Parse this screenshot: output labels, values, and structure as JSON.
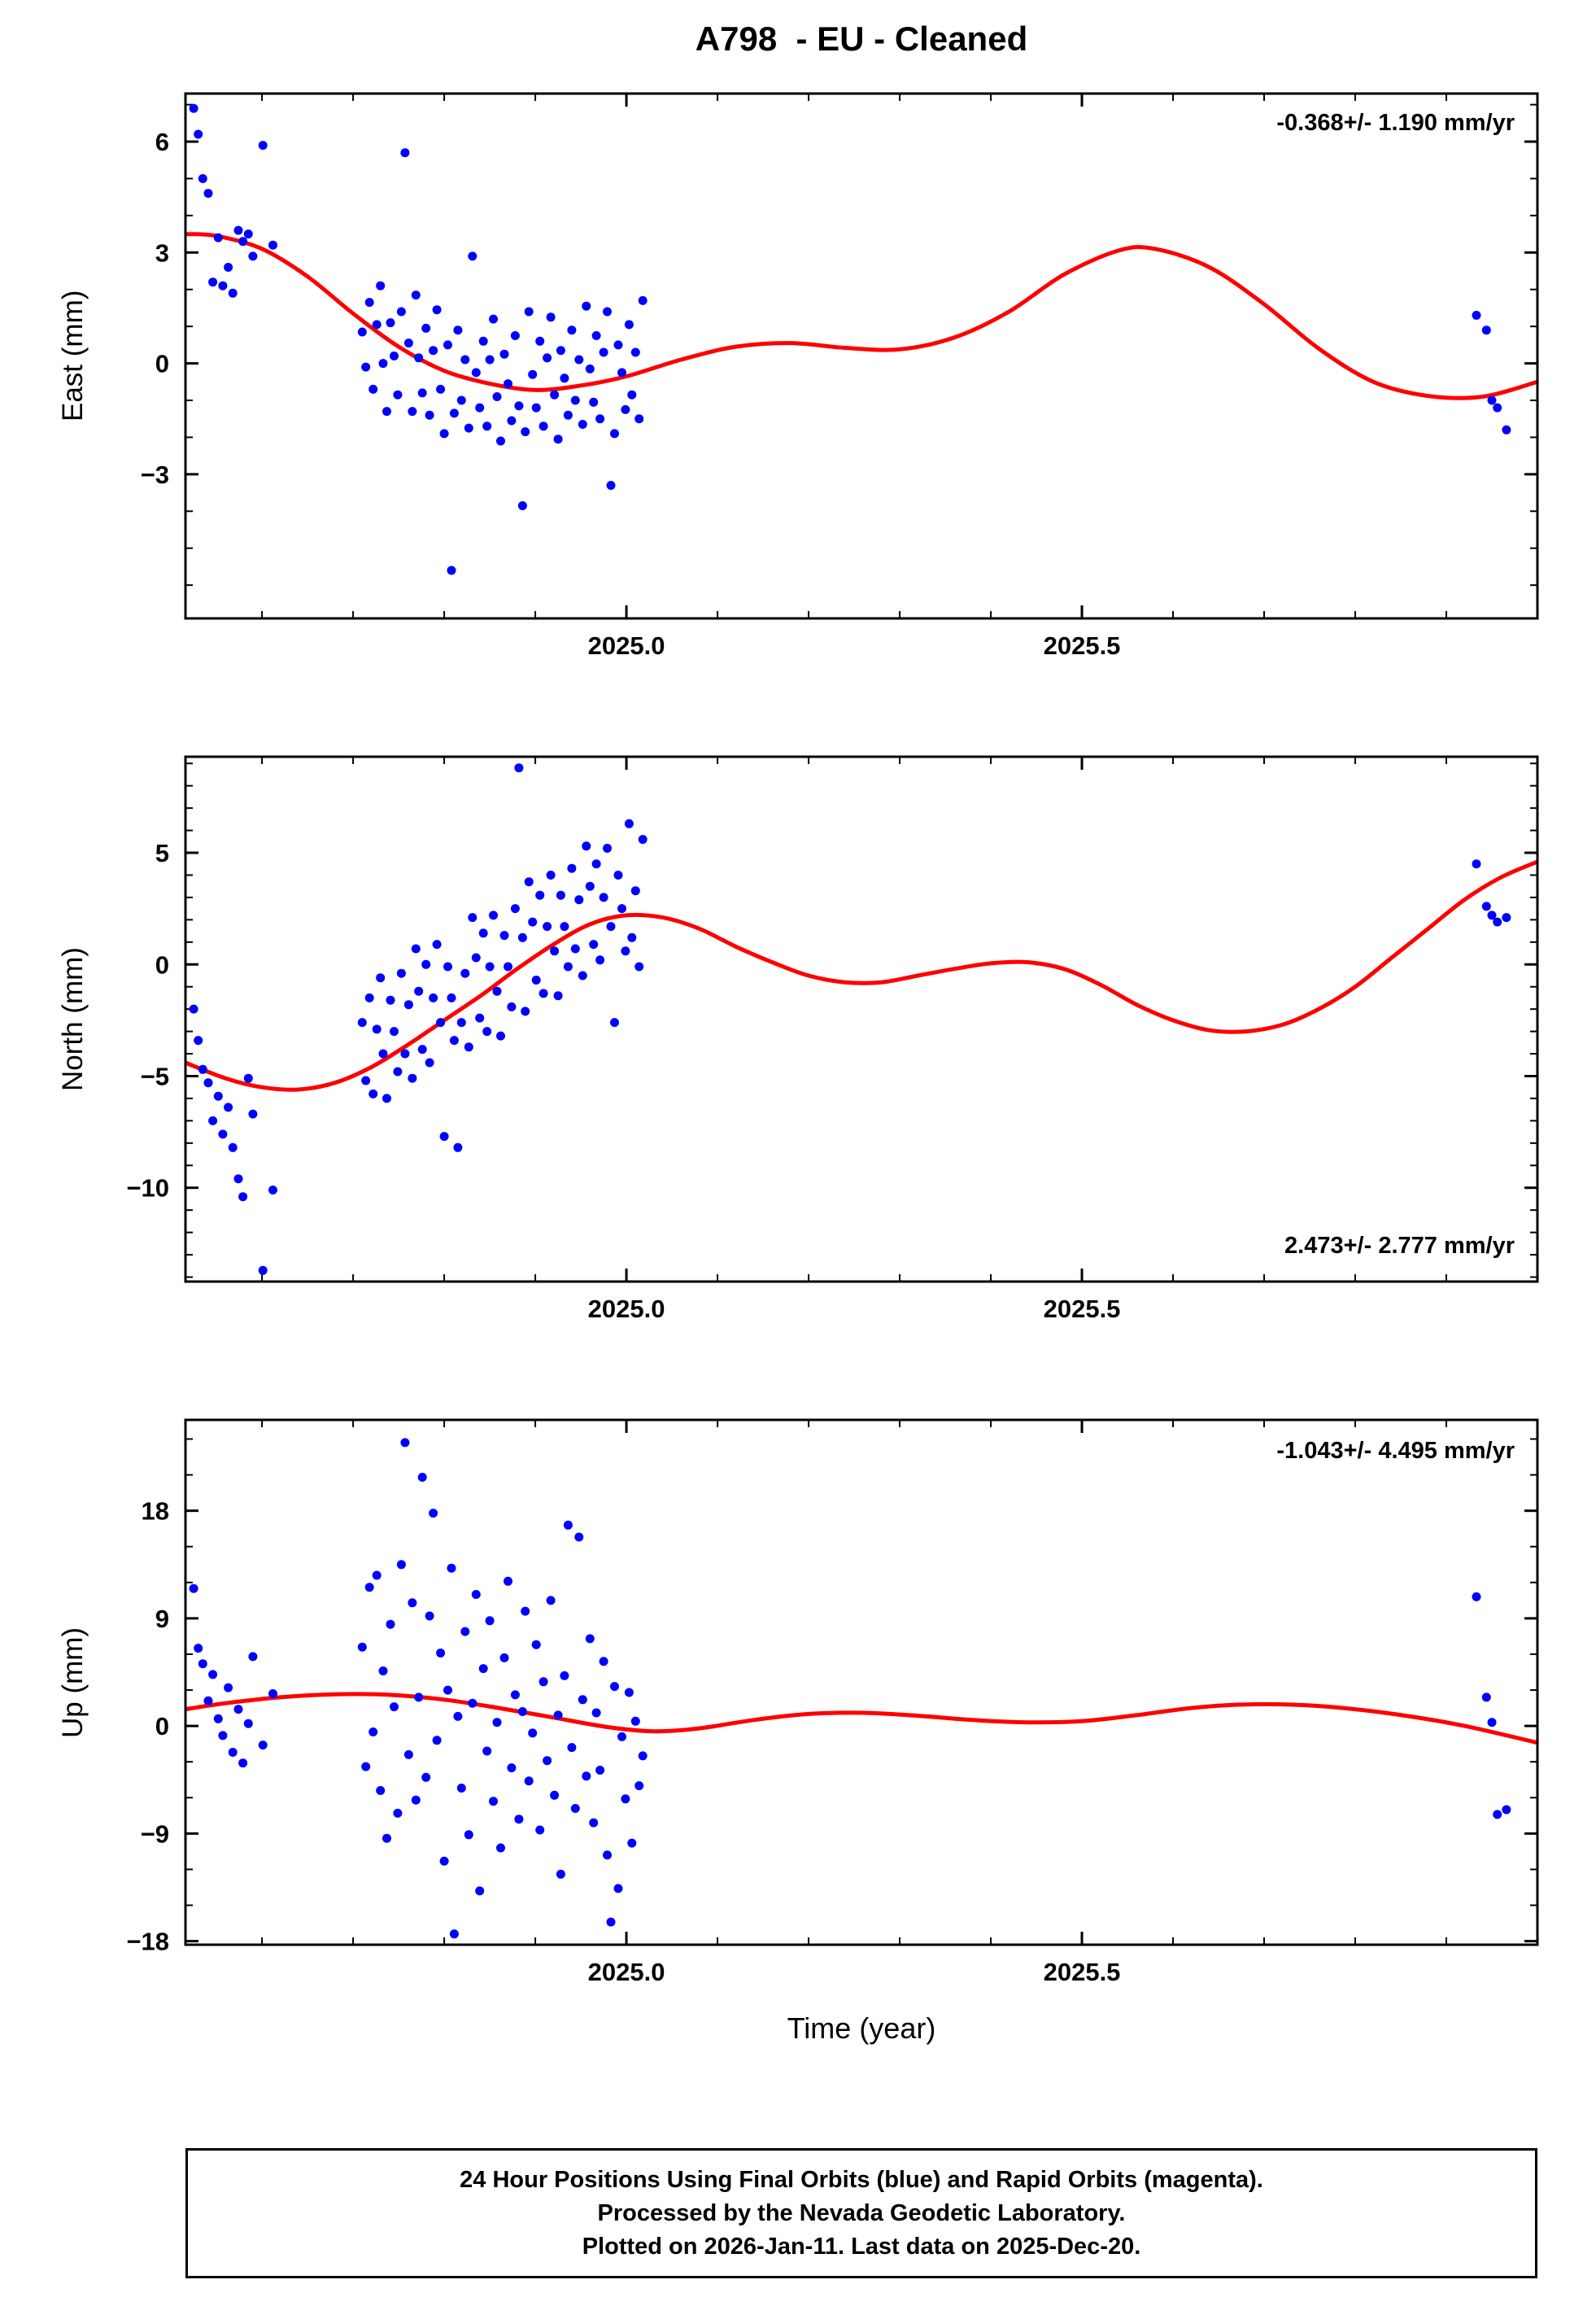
{
  "title": "A798  - EU - Cleaned",
  "xlabel": "Time (year)",
  "caption": {
    "line1": "24 Hour Positions Using Final Orbits (blue) and Rapid Orbits (magenta).",
    "line2": "Processed by the Nevada Geodetic Laboratory.",
    "line3": "Plotted on 2026-Jan-11. Last data on 2025-Dec-20."
  },
  "colors": {
    "points": "#0000ff",
    "fit": "#ff0000",
    "frame": "#000000",
    "background": "#ffffff"
  },
  "chart_data": {
    "type": "scatter",
    "xlim": [
      2024.516,
      2026.0
    ],
    "x_ticks_labeled": [
      2025.0,
      2025.5
    ],
    "x_minor_step": 0.1,
    "grid": false,
    "x": [
      2024.525,
      2024.53,
      2024.535,
      2024.541,
      2024.546,
      2024.552,
      2024.557,
      2024.563,
      2024.568,
      2024.574,
      2024.579,
      2024.585,
      2024.59,
      2024.601,
      2024.612,
      2024.71,
      2024.714,
      2024.718,
      2024.722,
      2024.726,
      2024.73,
      2024.733,
      2024.737,
      2024.741,
      2024.745,
      2024.749,
      2024.753,
      2024.757,
      2024.761,
      2024.765,
      2024.769,
      2024.772,
      2024.776,
      2024.78,
      2024.784,
      2024.788,
      2024.792,
      2024.796,
      2024.8,
      2024.804,
      2024.808,
      2024.811,
      2024.815,
      2024.819,
      2024.823,
      2024.827,
      2024.831,
      2024.835,
      2024.839,
      2024.843,
      2024.847,
      2024.85,
      2024.854,
      2024.858,
      2024.862,
      2024.866,
      2024.87,
      2024.874,
      2024.878,
      2024.882,
      2024.886,
      2024.889,
      2024.893,
      2024.897,
      2024.901,
      2024.905,
      2024.909,
      2024.913,
      2024.917,
      2024.921,
      2024.925,
      2024.928,
      2024.932,
      2024.936,
      2024.94,
      2024.944,
      2024.948,
      2024.952,
      2024.956,
      2024.96,
      2024.964,
      2024.967,
      2024.971,
      2024.975,
      2024.979,
      2024.983,
      2024.987,
      2024.991,
      2024.995,
      2024.999,
      2025.003,
      2025.006,
      2025.01,
      2025.014,
      2025.018,
      2025.933,
      2025.944,
      2025.95,
      2025.956,
      2025.966
    ],
    "panels": [
      {
        "id": "east",
        "ylabel": "East (mm)",
        "annotation": "-0.368+/- 1.190 mm/yr",
        "annotation_pos": "top-right",
        "ylim": [
          -6.9,
          7.3
        ],
        "yticks": [
          6,
          3,
          0,
          -3
        ],
        "y_minor_step": 1,
        "values": [
          6.9,
          6.2,
          5.0,
          4.6,
          2.2,
          3.4,
          2.1,
          2.6,
          1.9,
          3.6,
          3.3,
          3.5,
          2.9,
          5.9,
          3.2,
          0.85,
          -0.1,
          1.65,
          -0.7,
          1.05,
          2.1,
          0.0,
          -1.3,
          1.1,
          0.2,
          -0.85,
          1.4,
          5.7,
          0.55,
          -1.3,
          1.85,
          0.15,
          -0.8,
          0.95,
          -1.4,
          0.35,
          1.45,
          -0.7,
          -1.9,
          0.5,
          -5.6,
          -1.35,
          0.9,
          -1.0,
          0.1,
          -1.75,
          2.9,
          -0.25,
          -1.2,
          0.6,
          -1.7,
          0.1,
          1.2,
          -0.9,
          -2.1,
          0.25,
          -0.55,
          -1.55,
          0.75,
          -1.15,
          -3.85,
          -1.85,
          1.4,
          -0.3,
          -1.2,
          0.6,
          -1.7,
          0.15,
          1.25,
          -0.85,
          -2.05,
          0.35,
          -0.4,
          -1.4,
          0.9,
          -1.0,
          0.1,
          -1.65,
          1.55,
          -0.15,
          -1.05,
          0.75,
          -1.5,
          0.3,
          1.4,
          -3.3,
          -1.9,
          0.5,
          -0.25,
          -1.25,
          1.05,
          -0.85,
          0.3,
          -1.5,
          1.7,
          1.3,
          0.9,
          -1.0,
          -1.2,
          -1.8
        ],
        "fit": [
          [
            2024.516,
            3.5
          ],
          [
            2024.55,
            3.45
          ],
          [
            2024.6,
            3.1
          ],
          [
            2024.65,
            2.35
          ],
          [
            2024.7,
            1.35
          ],
          [
            2024.75,
            0.45
          ],
          [
            2024.8,
            -0.2
          ],
          [
            2024.85,
            -0.55
          ],
          [
            2024.9,
            -0.72
          ],
          [
            2024.95,
            -0.6
          ],
          [
            2025.0,
            -0.35
          ],
          [
            2025.06,
            0.1
          ],
          [
            2025.12,
            0.45
          ],
          [
            2025.18,
            0.55
          ],
          [
            2025.24,
            0.42
          ],
          [
            2025.3,
            0.38
          ],
          [
            2025.36,
            0.7
          ],
          [
            2025.42,
            1.4
          ],
          [
            2025.48,
            2.4
          ],
          [
            2025.54,
            3.05
          ],
          [
            2025.58,
            3.1
          ],
          [
            2025.64,
            2.6
          ],
          [
            2025.7,
            1.6
          ],
          [
            2025.76,
            0.4
          ],
          [
            2025.82,
            -0.5
          ],
          [
            2025.88,
            -0.88
          ],
          [
            2025.94,
            -0.9
          ],
          [
            2026.0,
            -0.5
          ]
        ]
      },
      {
        "id": "north",
        "ylabel": "North (mm)",
        "annotation": "2.473+/- 2.777 mm/yr",
        "annotation_pos": "bottom-right",
        "ylim": [
          -14.2,
          9.3
        ],
        "yticks": [
          5,
          0,
          -5,
          -10
        ],
        "y_minor_step": 1,
        "values": [
          -2.0,
          -3.4,
          -4.7,
          -5.3,
          -7.0,
          -5.9,
          -7.6,
          -6.4,
          -8.2,
          -9.6,
          -10.4,
          -5.1,
          -6.7,
          -13.7,
          -10.1,
          -2.6,
          -5.2,
          -1.5,
          -5.8,
          -2.9,
          -0.6,
          -4.0,
          -6.0,
          -1.6,
          -3.0,
          -4.8,
          -0.4,
          -4.0,
          -1.8,
          -5.1,
          0.7,
          -1.2,
          -3.8,
          0.0,
          -4.4,
          -1.5,
          0.9,
          -2.6,
          -7.7,
          -0.1,
          -1.5,
          -3.4,
          -8.2,
          -2.6,
          -0.4,
          -3.7,
          2.1,
          0.3,
          -2.4,
          1.4,
          -3.0,
          -0.1,
          2.2,
          -1.2,
          -3.2,
          1.3,
          -0.1,
          -1.9,
          2.5,
          8.8,
          1.2,
          -2.1,
          3.7,
          1.9,
          -0.7,
          3.1,
          -1.3,
          1.7,
          4.0,
          0.6,
          -1.4,
          3.1,
          1.7,
          -0.1,
          4.3,
          0.7,
          2.9,
          -0.5,
          5.3,
          3.5,
          0.9,
          4.5,
          0.2,
          3.0,
          5.2,
          1.7,
          -2.6,
          4.0,
          2.5,
          0.6,
          6.3,
          1.2,
          3.3,
          -0.1,
          5.6,
          4.5,
          2.6,
          2.2,
          1.9,
          2.1
        ],
        "fit": [
          [
            2024.516,
            -4.4
          ],
          [
            2024.56,
            -5.1
          ],
          [
            2024.6,
            -5.5
          ],
          [
            2024.64,
            -5.6
          ],
          [
            2024.68,
            -5.3
          ],
          [
            2024.72,
            -4.6
          ],
          [
            2024.76,
            -3.6
          ],
          [
            2024.8,
            -2.5
          ],
          [
            2024.84,
            -1.4
          ],
          [
            2024.88,
            -0.2
          ],
          [
            2024.92,
            0.9
          ],
          [
            2024.96,
            1.8
          ],
          [
            2025.0,
            2.2
          ],
          [
            2025.04,
            2.1
          ],
          [
            2025.08,
            1.6
          ],
          [
            2025.12,
            0.8
          ],
          [
            2025.16,
            0.1
          ],
          [
            2025.2,
            -0.5
          ],
          [
            2025.24,
            -0.8
          ],
          [
            2025.28,
            -0.8
          ],
          [
            2025.32,
            -0.5
          ],
          [
            2025.36,
            -0.2
          ],
          [
            2025.4,
            0.05
          ],
          [
            2025.44,
            0.1
          ],
          [
            2025.48,
            -0.2
          ],
          [
            2025.52,
            -0.9
          ],
          [
            2025.56,
            -1.8
          ],
          [
            2025.6,
            -2.5
          ],
          [
            2025.64,
            -2.95
          ],
          [
            2025.68,
            -3.0
          ],
          [
            2025.72,
            -2.7
          ],
          [
            2025.76,
            -2.0
          ],
          [
            2025.8,
            -1.0
          ],
          [
            2025.84,
            0.3
          ],
          [
            2025.88,
            1.6
          ],
          [
            2025.92,
            2.9
          ],
          [
            2025.96,
            3.9
          ],
          [
            2026.0,
            4.6
          ]
        ]
      },
      {
        "id": "up",
        "ylabel": "Up (mm)",
        "annotation": "-1.043+/- 4.495 mm/yr",
        "annotation_pos": "top-right",
        "ylim": [
          -18.3,
          25.6
        ],
        "yticks": [
          18,
          9,
          0,
          -9,
          -18
        ],
        "y_minor_step": 3,
        "values": [
          11.5,
          6.5,
          5.2,
          2.1,
          4.3,
          0.6,
          -0.8,
          3.2,
          -2.2,
          1.4,
          -3.1,
          0.2,
          5.8,
          -1.6,
          2.7,
          6.6,
          -3.4,
          11.6,
          -0.5,
          12.6,
          -5.4,
          4.6,
          -9.4,
          8.5,
          1.6,
          -7.3,
          13.5,
          23.7,
          -2.4,
          10.3,
          -6.2,
          2.4,
          20.8,
          -4.3,
          9.2,
          17.8,
          -1.2,
          6.1,
          -11.3,
          3.0,
          13.2,
          -17.4,
          0.8,
          -5.2,
          7.9,
          -9.1,
          1.9,
          11.0,
          -13.8,
          4.8,
          -2.1,
          8.8,
          -6.3,
          0.3,
          -10.2,
          5.7,
          12.1,
          -3.5,
          2.6,
          -7.8,
          1.2,
          9.6,
          -4.6,
          -0.6,
          6.8,
          -8.7,
          3.7,
          -2.9,
          10.5,
          -5.8,
          0.9,
          -12.4,
          4.2,
          16.8,
          -1.8,
          -6.9,
          15.8,
          2.2,
          -4.2,
          7.3,
          -8.1,
          1.1,
          -3.7,
          5.4,
          -10.8,
          -16.4,
          3.3,
          -13.6,
          -0.9,
          -6.1,
          2.8,
          -9.8,
          0.4,
          -5.0,
          -2.5,
          10.8,
          2.4,
          0.3,
          -7.4,
          -7.0
        ],
        "fit": [
          [
            2024.516,
            1.4
          ],
          [
            2024.56,
            1.9
          ],
          [
            2024.62,
            2.4
          ],
          [
            2024.68,
            2.65
          ],
          [
            2024.74,
            2.6
          ],
          [
            2024.8,
            2.2
          ],
          [
            2024.86,
            1.5
          ],
          [
            2024.92,
            0.7
          ],
          [
            2024.98,
            -0.1
          ],
          [
            2025.03,
            -0.45
          ],
          [
            2025.08,
            -0.2
          ],
          [
            2025.14,
            0.5
          ],
          [
            2025.2,
            1.0
          ],
          [
            2025.26,
            1.1
          ],
          [
            2025.32,
            0.85
          ],
          [
            2025.38,
            0.5
          ],
          [
            2025.44,
            0.3
          ],
          [
            2025.5,
            0.4
          ],
          [
            2025.56,
            0.9
          ],
          [
            2025.62,
            1.5
          ],
          [
            2025.68,
            1.8
          ],
          [
            2025.74,
            1.75
          ],
          [
            2025.8,
            1.4
          ],
          [
            2025.86,
            0.8
          ],
          [
            2025.92,
            0.0
          ],
          [
            2026.0,
            -1.4
          ]
        ]
      }
    ]
  }
}
